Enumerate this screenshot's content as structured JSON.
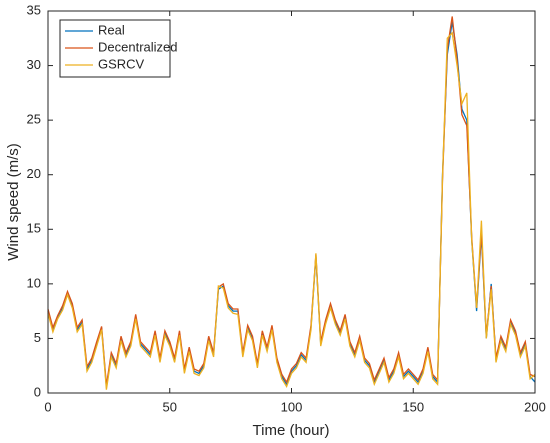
{
  "chart_data": {
    "type": "line",
    "xlabel": "Time (hour)",
    "ylabel": "Wind speed (m/s)",
    "x": [
      0,
      2,
      4,
      6,
      8,
      10,
      12,
      14,
      16,
      18,
      20,
      22,
      24,
      26,
      28,
      30,
      32,
      34,
      36,
      38,
      40,
      42,
      44,
      46,
      48,
      50,
      52,
      54,
      56,
      58,
      60,
      62,
      64,
      66,
      68,
      70,
      72,
      74,
      76,
      78,
      80,
      82,
      84,
      86,
      88,
      90,
      92,
      94,
      96,
      98,
      100,
      102,
      104,
      106,
      108,
      110,
      112,
      114,
      116,
      118,
      120,
      122,
      124,
      126,
      128,
      130,
      132,
      134,
      136,
      138,
      140,
      142,
      144,
      146,
      148,
      150,
      152,
      154,
      156,
      158,
      160,
      162,
      164,
      166,
      168,
      170,
      172,
      174,
      176,
      178,
      180,
      182,
      184,
      186,
      188,
      190,
      192,
      194,
      196,
      198,
      200
    ],
    "series": [
      {
        "name": "Real",
        "color": "#0072bd",
        "values": [
          7.5,
          5.8,
          7.0,
          7.8,
          9.2,
          8.0,
          5.8,
          6.5,
          2.2,
          3.0,
          4.5,
          6.0,
          0.5,
          3.5,
          2.5,
          5.0,
          3.5,
          4.5,
          7.0,
          4.5,
          4.0,
          3.5,
          5.5,
          3.0,
          5.5,
          4.5,
          3.0,
          5.5,
          2.0,
          4.0,
          2.0,
          1.8,
          2.5,
          5.0,
          3.5,
          9.5,
          9.8,
          8.0,
          7.5,
          7.5,
          3.5,
          6.0,
          5.0,
          2.5,
          5.5,
          4.0,
          6.0,
          3.0,
          1.5,
          0.8,
          2.0,
          2.5,
          3.5,
          3.0,
          6.0,
          12.5,
          4.5,
          6.5,
          8.0,
          6.5,
          5.5,
          7.0,
          4.5,
          3.5,
          5.0,
          3.0,
          2.5,
          1.0,
          2.0,
          3.0,
          1.2,
          2.0,
          3.5,
          1.5,
          2.0,
          1.5,
          1.0,
          2.0,
          4.0,
          1.5,
          1.0,
          20.0,
          31.0,
          34.0,
          31.0,
          26.0,
          25.0,
          14.0,
          7.5,
          14.5,
          5.0,
          10.0,
          3.0,
          5.0,
          4.0,
          6.5,
          5.5,
          3.5,
          4.5,
          1.5,
          1.0
        ]
      },
      {
        "name": "Decentralized",
        "color": "#d95319",
        "values": [
          7.7,
          6.0,
          7.1,
          8.0,
          9.3,
          8.2,
          6.0,
          6.7,
          2.4,
          3.2,
          4.7,
          6.1,
          0.7,
          3.7,
          2.7,
          5.2,
          3.7,
          4.7,
          7.2,
          4.7,
          4.2,
          3.7,
          5.7,
          3.2,
          5.7,
          4.7,
          3.2,
          5.7,
          2.2,
          4.2,
          2.2,
          2.0,
          2.7,
          5.2,
          3.7,
          9.7,
          10.0,
          8.2,
          7.7,
          7.7,
          3.7,
          6.2,
          5.2,
          2.7,
          5.7,
          4.2,
          6.2,
          3.2,
          1.7,
          1.0,
          2.2,
          2.7,
          3.7,
          3.2,
          6.2,
          12.7,
          4.7,
          6.7,
          8.2,
          6.7,
          5.7,
          7.2,
          4.7,
          3.7,
          5.2,
          3.2,
          2.7,
          1.2,
          2.2,
          3.2,
          1.4,
          2.2,
          3.7,
          1.7,
          2.2,
          1.7,
          1.2,
          2.2,
          4.2,
          1.7,
          1.2,
          19.5,
          31.5,
          34.5,
          30.5,
          25.5,
          24.5,
          14.3,
          7.8,
          14.8,
          5.2,
          9.8,
          3.2,
          5.2,
          4.2,
          6.7,
          5.7,
          3.7,
          4.7,
          1.7,
          1.5
        ]
      },
      {
        "name": "GSRCV",
        "color": "#edb120",
        "values": [
          7.3,
          5.6,
          6.8,
          7.6,
          9.0,
          7.8,
          5.6,
          6.3,
          2.0,
          2.8,
          4.3,
          5.8,
          0.3,
          3.3,
          2.3,
          4.8,
          3.3,
          4.3,
          6.8,
          4.3,
          3.8,
          3.3,
          5.3,
          2.8,
          5.3,
          4.3,
          2.8,
          5.3,
          1.8,
          3.8,
          1.8,
          1.6,
          2.3,
          4.8,
          3.3,
          9.8,
          9.6,
          7.8,
          7.3,
          7.2,
          3.3,
          5.8,
          4.8,
          2.3,
          5.3,
          3.8,
          5.8,
          2.8,
          1.3,
          0.6,
          1.8,
          2.3,
          3.3,
          2.8,
          5.8,
          12.8,
          4.3,
          6.3,
          7.8,
          6.3,
          5.3,
          6.8,
          4.3,
          3.3,
          4.8,
          2.8,
          2.3,
          0.8,
          1.8,
          2.8,
          1.0,
          1.8,
          3.3,
          1.3,
          1.8,
          1.3,
          0.8,
          1.8,
          3.8,
          1.3,
          0.8,
          19.8,
          32.5,
          33.0,
          30.0,
          26.5,
          27.5,
          14.0,
          7.8,
          15.8,
          5.0,
          9.5,
          2.8,
          4.8,
          3.8,
          6.3,
          5.3,
          3.3,
          4.3,
          1.3,
          1.7
        ]
      }
    ],
    "xlim": [
      0,
      200
    ],
    "xticks": [
      0,
      50,
      100,
      150,
      200
    ],
    "ylim": [
      0,
      35
    ],
    "yticks": [
      0,
      5,
      10,
      15,
      20,
      25,
      30,
      35
    ],
    "legend": "upper left",
    "grid": false
  }
}
